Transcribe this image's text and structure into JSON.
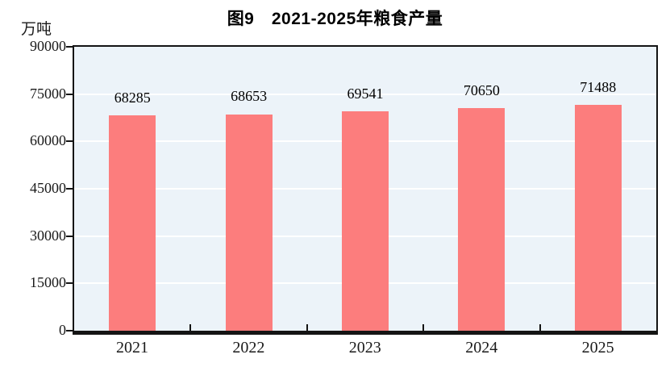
{
  "page": {
    "background_color": "#ffffff"
  },
  "chart_data": {
    "type": "bar",
    "title": "图9　2021-2025年粮食产量",
    "unit_label": "万吨",
    "categories": [
      "2021",
      "2022",
      "2023",
      "2024",
      "2025"
    ],
    "values": [
      68285,
      68653,
      69541,
      70650,
      71488
    ],
    "value_labels": [
      "68285",
      "68653",
      "69541",
      "70650",
      "71488"
    ],
    "xlabel": "",
    "ylabel": "万吨",
    "ylim": [
      0,
      90000
    ],
    "yticks": [
      0,
      15000,
      30000,
      45000,
      60000,
      75000,
      90000
    ],
    "ytick_labels": [
      "0",
      "15000",
      "30000",
      "45000",
      "60000",
      "75000",
      "90000"
    ],
    "grid": true,
    "legend": "none",
    "colors": {
      "bar_fill": "#FC7D7D",
      "plot_background": "#ECF3F9",
      "gridline": "#FFFFFF",
      "axis": "#141414",
      "text": "#000000"
    }
  }
}
